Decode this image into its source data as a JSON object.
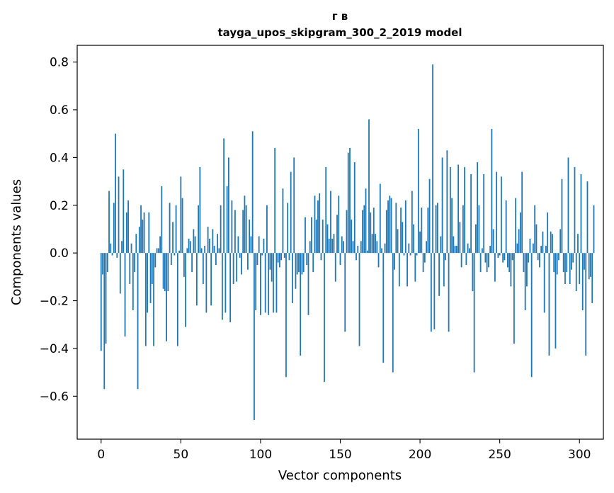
{
  "chart_data": {
    "type": "bar",
    "title_lines": [
      "г в",
      "tayga_upos_skipgram_300_2_2019 model"
    ],
    "xlabel": "Vector components",
    "ylabel": "Components values",
    "xlim": [
      -15,
      315
    ],
    "ylim": [
      -0.78,
      0.87
    ],
    "x_ticks": [
      0,
      50,
      100,
      150,
      200,
      250,
      300
    ],
    "x_tick_labels": [
      "0",
      "50",
      "100",
      "150",
      "200",
      "250",
      "300"
    ],
    "y_ticks": [
      -0.6,
      -0.4,
      -0.2,
      0.0,
      0.2,
      0.4,
      0.6,
      0.8
    ],
    "y_tick_labels": [
      "−0.6",
      "−0.4",
      "−0.2",
      "0.0",
      "0.2",
      "0.4",
      "0.6",
      "0.8"
    ],
    "grid": false,
    "legend": "none",
    "bar_color": "#1f77b4",
    "values": [
      -0.41,
      -0.09,
      -0.57,
      -0.38,
      -0.08,
      0.26,
      0.04,
      -0.01,
      0.21,
      0.5,
      -0.02,
      0.32,
      -0.17,
      0.05,
      0.35,
      -0.35,
      0.17,
      0.22,
      -0.13,
      0.04,
      -0.24,
      -0.08,
      0.08,
      -0.57,
      0.11,
      0.2,
      0.14,
      0.17,
      -0.39,
      -0.25,
      0.17,
      -0.21,
      -0.13,
      -0.39,
      -0.06,
      0.02,
      0.02,
      0.07,
      0.28,
      -0.15,
      -0.16,
      -0.37,
      -0.16,
      0.21,
      -0.05,
      0.13,
      -0.01,
      0.2,
      -0.39,
      0.01,
      0.32,
      0.23,
      -0.1,
      -0.31,
      0.02,
      0.06,
      0.05,
      -0.08,
      0.1,
      0.07,
      -0.22,
      0.2,
      0.36,
      0.02,
      -0.13,
      0.03,
      -0.25,
      0.11,
      0.06,
      -0.22,
      0.1,
      0.03,
      -0.05,
      0.08,
      0.02,
      0.2,
      -0.28,
      0.48,
      -0.25,
      0.28,
      0.4,
      -0.29,
      0.22,
      -0.13,
      0.18,
      -0.12,
      0.07,
      -0.02,
      -0.09,
      0.18,
      0.24,
      0.2,
      -0.07,
      0.14,
      0.07,
      0.51,
      -0.7,
      -0.24,
      -0.05,
      0.07,
      -0.26,
      -0.01,
      0.06,
      -0.25,
      0.2,
      -0.26,
      -0.07,
      -0.12,
      -0.25,
      0.44,
      -0.25,
      -0.04,
      -0.06,
      -0.03,
      0.27,
      -0.02,
      -0.52,
      0.21,
      -0.03,
      0.34,
      -0.21,
      0.4,
      -0.15,
      -0.09,
      -0.08,
      -0.43,
      -0.09,
      -0.08,
      0.15,
      -0.05,
      -0.26,
      0.05,
      0.15,
      -0.08,
      0.24,
      0.14,
      0.22,
      0.25,
      -0.03,
      0.14,
      -0.54,
      0.36,
      0.12,
      0.06,
      0.26,
      0.06,
      0.08,
      -0.12,
      0.16,
      0.24,
      -0.05,
      0.07,
      0.05,
      -0.33,
      0.18,
      0.42,
      0.44,
      0.14,
      0.05,
      0.38,
      -0.03,
      0.03,
      -0.39,
      0.05,
      0.18,
      0.2,
      0.27,
      0.01,
      0.56,
      0.17,
      0.08,
      0.19,
      0.08,
      0.05,
      -0.06,
      0.29,
      0.02,
      -0.46,
      0.04,
      0.18,
      0.22,
      0.24,
      0.23,
      -0.5,
      -0.07,
      0.21,
      0.1,
      -0.14,
      0.19,
      0.13,
      -0.01,
      0.22,
      -0.14,
      0.04,
      -0.01,
      0.26,
      0.12,
      -0.12,
      -0.01,
      0.52,
      0.09,
      0.19,
      -0.08,
      -0.04,
      0.05,
      0.19,
      0.31,
      -0.33,
      0.79,
      -0.32,
      0.2,
      0.21,
      -0.18,
      0.07,
      0.4,
      -0.14,
      -0.03,
      0.43,
      -0.33,
      0.36,
      0.23,
      0.07,
      0.03,
      0.03,
      0.37,
      0.13,
      -0.06,
      0.2,
      0.36,
      -0.05,
      0.04,
      0.02,
      0.33,
      -0.16,
      -0.5,
      0.12,
      0.38,
      0.2,
      -0.08,
      0.02,
      0.33,
      -0.04,
      -0.08,
      -0.06,
      0.03,
      0.52,
      0.1,
      -0.12,
      0.34,
      -0.02,
      -0.01,
      0.32,
      -0.04,
      -0.03,
      0.22,
      -0.06,
      -0.08,
      -0.14,
      -0.03,
      -0.38,
      0.23,
      0.04,
      0.1,
      0.17,
      0.34,
      -0.08,
      -0.24,
      -0.14,
      -0.04,
      0.06,
      -0.52,
      0.04,
      0.2,
      0.12,
      -0.03,
      -0.06,
      0.03,
      0.09,
      -0.25,
      0.03,
      0.17,
      -0.43,
      0.09,
      0.08,
      -0.08,
      -0.4,
      -0.09,
      -0.03,
      0.1,
      0.31,
      -0.08,
      -0.13,
      -0.08,
      0.4,
      -0.13,
      -0.07,
      -0.04,
      0.36,
      -0.16,
      0.08,
      -0.13,
      0.33,
      -0.24,
      -0.07,
      -0.43,
      0.3,
      -0.11,
      -0.1,
      -0.21,
      0.2
    ]
  }
}
